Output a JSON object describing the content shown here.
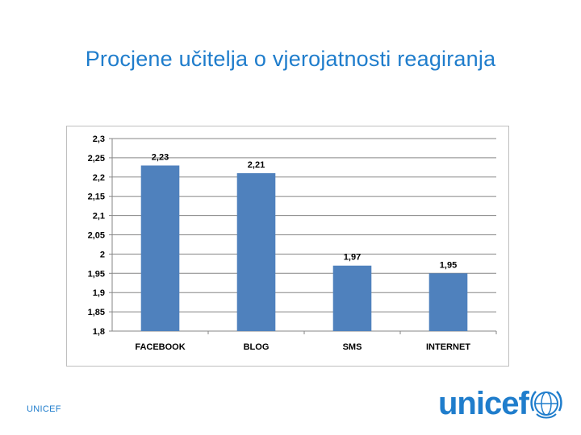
{
  "slide": {
    "title": "Procjene učitelja o vjerojatnosti reagiranja",
    "footer_label": "UNICEF",
    "logo_text": "unicef",
    "accent_color": "#1f7dcc"
  },
  "chart_data": {
    "type": "bar",
    "categories": [
      "FACEBOOK",
      "BLOG",
      "SMS",
      "INTERNET"
    ],
    "values": [
      2.23,
      2.21,
      1.97,
      1.95
    ],
    "data_labels": [
      "2,23",
      "2,21",
      "1,97",
      "1,95"
    ],
    "yticks": [
      1.8,
      1.85,
      1.9,
      1.95,
      2,
      2.05,
      2.1,
      2.15,
      2.2,
      2.25,
      2.3
    ],
    "ytick_labels": [
      "1,8",
      "1,85",
      "1,9",
      "1,95",
      "2",
      "2,05",
      "2,1",
      "2,15",
      "2,2",
      "2,25",
      "2,3"
    ],
    "ylim": [
      1.8,
      2.3
    ],
    "grid": true,
    "legend": "none",
    "bar_color": "#4f81bd",
    "title": "",
    "xlabel": "",
    "ylabel": ""
  }
}
